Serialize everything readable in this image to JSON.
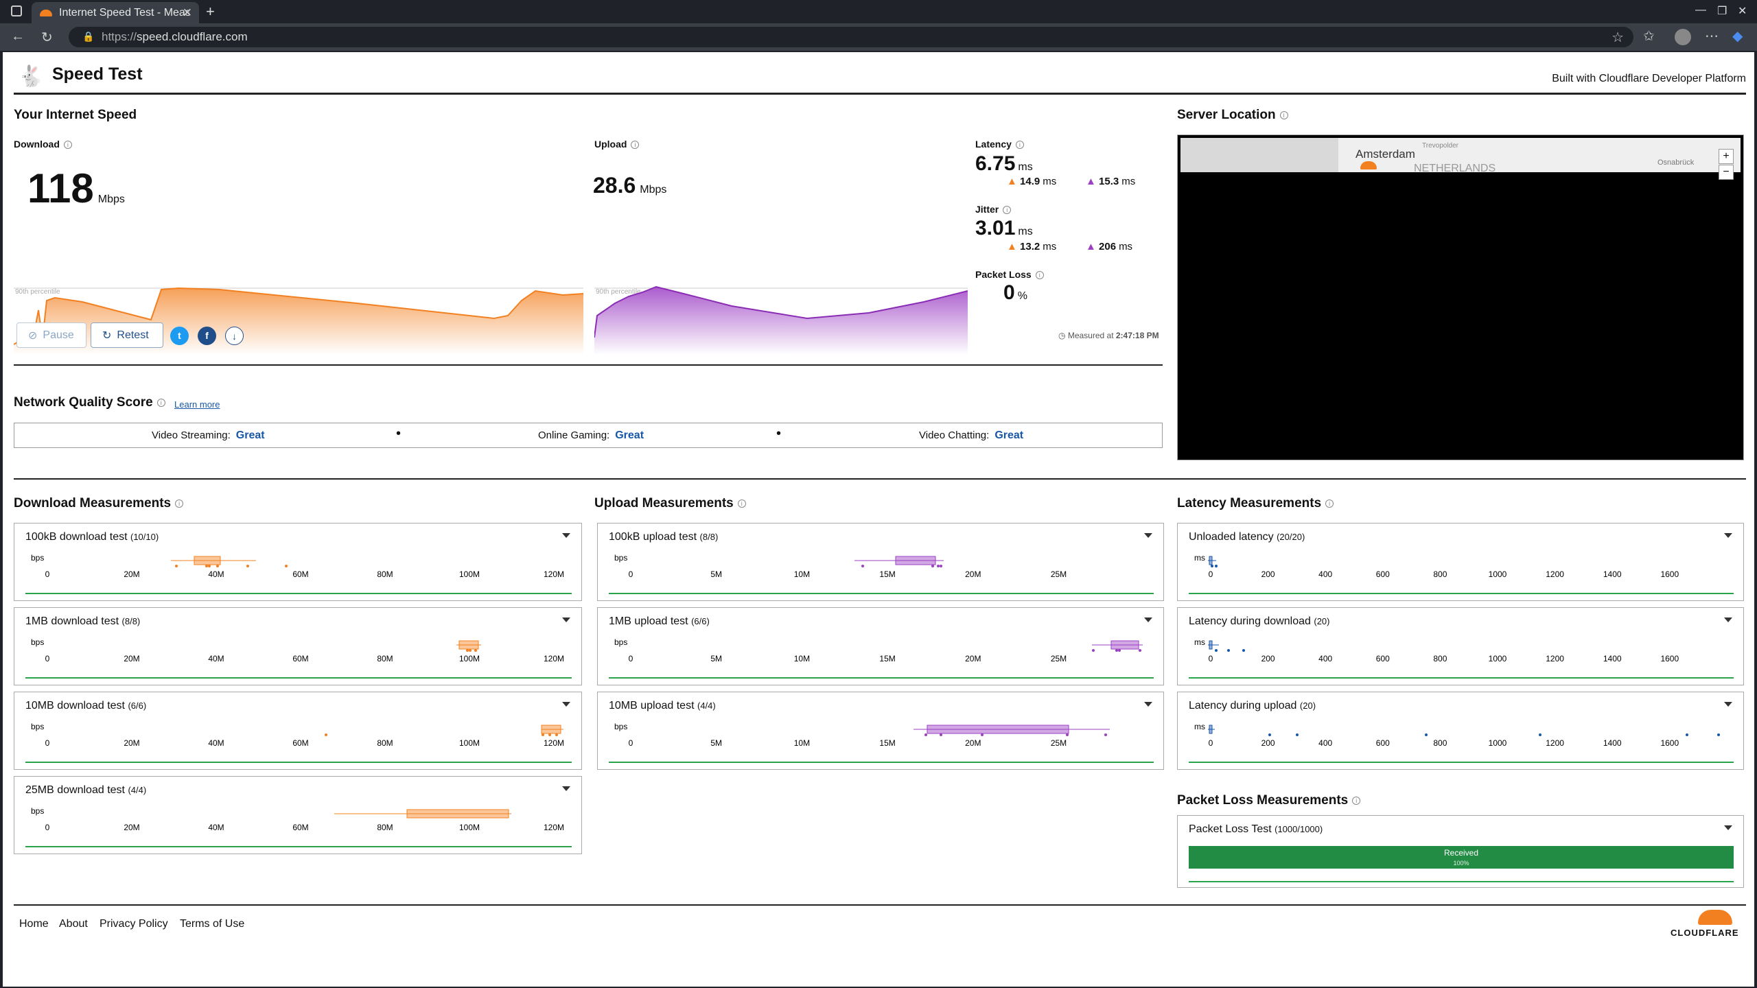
{
  "browser": {
    "tab_title": "Internet Speed Test - Measure",
    "url_scheme": "https://",
    "url_host": "speed.cloudflare.com"
  },
  "header": {
    "title": "Speed Test",
    "built_with": "Built with Cloudflare Developer Platform"
  },
  "speed": {
    "section_title": "Your Internet Speed",
    "download_label": "Download",
    "download_value": "118",
    "download_unit": "Mbps",
    "upload_label": "Upload",
    "upload_value": "28.6",
    "upload_unit": "Mbps",
    "percentile_label": "90th percentile",
    "latency_label": "Latency",
    "latency_value": "6.75",
    "latency_unit": "ms",
    "latency_down": "14.9",
    "latency_up": "15.3",
    "jitter_label": "Jitter",
    "jitter_value": "3.01",
    "jitter_unit": "ms",
    "jitter_down": "13.2",
    "jitter_up": "206",
    "ms": "ms",
    "packet_loss_label": "Packet Loss",
    "packet_loss_value": "0",
    "packet_loss_unit": "%",
    "pause_label": "Pause",
    "retest_label": "Retest",
    "measured_prefix": "Measured at",
    "measured_time": "2:47:18 PM"
  },
  "network_quality": {
    "title": "Network Quality Score",
    "learn_more": "Learn more",
    "items": [
      {
        "label": "Video Streaming:",
        "value": "Great"
      },
      {
        "label": "Online Gaming:",
        "value": "Great"
      },
      {
        "label": "Video Chatting:",
        "value": "Great"
      }
    ],
    "separator": "•"
  },
  "server": {
    "title": "Server Location",
    "map_city": "Amsterdam",
    "map_country": "NETHERLANDS",
    "map_place_1": "Trevopolder",
    "map_place_2": "Osnabrück",
    "zoom_in": "+",
    "zoom_out": "−"
  },
  "download_measurements": {
    "title": "Download Measurements",
    "axis_unit": "bps",
    "ticks": [
      "0",
      "20M",
      "40M",
      "60M",
      "80M",
      "100M",
      "120M"
    ],
    "tests": [
      {
        "title": "100kB download test",
        "count": "(10/10)"
      },
      {
        "title": "1MB download test",
        "count": "(8/8)"
      },
      {
        "title": "10MB download test",
        "count": "(6/6)"
      },
      {
        "title": "25MB download test",
        "count": "(4/4)"
      }
    ]
  },
  "upload_measurements": {
    "title": "Upload Measurements",
    "axis_unit": "bps",
    "ticks": [
      "0",
      "5M",
      "10M",
      "15M",
      "20M",
      "25M"
    ],
    "tests": [
      {
        "title": "100kB upload test",
        "count": "(8/8)"
      },
      {
        "title": "1MB upload test",
        "count": "(6/6)"
      },
      {
        "title": "10MB upload test",
        "count": "(4/4)"
      }
    ]
  },
  "latency_measurements": {
    "title": "Latency Measurements",
    "axis_unit": "ms",
    "ticks": [
      "0",
      "200",
      "400",
      "600",
      "800",
      "1000",
      "1200",
      "1400",
      "1600"
    ],
    "tests": [
      {
        "title": "Unloaded latency",
        "count": "(20/20)"
      },
      {
        "title": "Latency during download",
        "count": "(20)"
      },
      {
        "title": "Latency during upload",
        "count": "(20)"
      }
    ]
  },
  "packet_loss": {
    "title": "Packet Loss Measurements",
    "test_title": "Packet Loss Test",
    "test_count": "(1000/1000)",
    "received_label": "Received",
    "received_pct": "100%"
  },
  "footer": {
    "links": [
      "Home",
      "About",
      "Privacy Policy",
      "Terms of Use"
    ],
    "brand": "CLOUDFLARE"
  },
  "colors": {
    "download": "#f38020",
    "upload": "#9c3fc4",
    "good": "#228b44",
    "link": "#1856a8"
  }
}
